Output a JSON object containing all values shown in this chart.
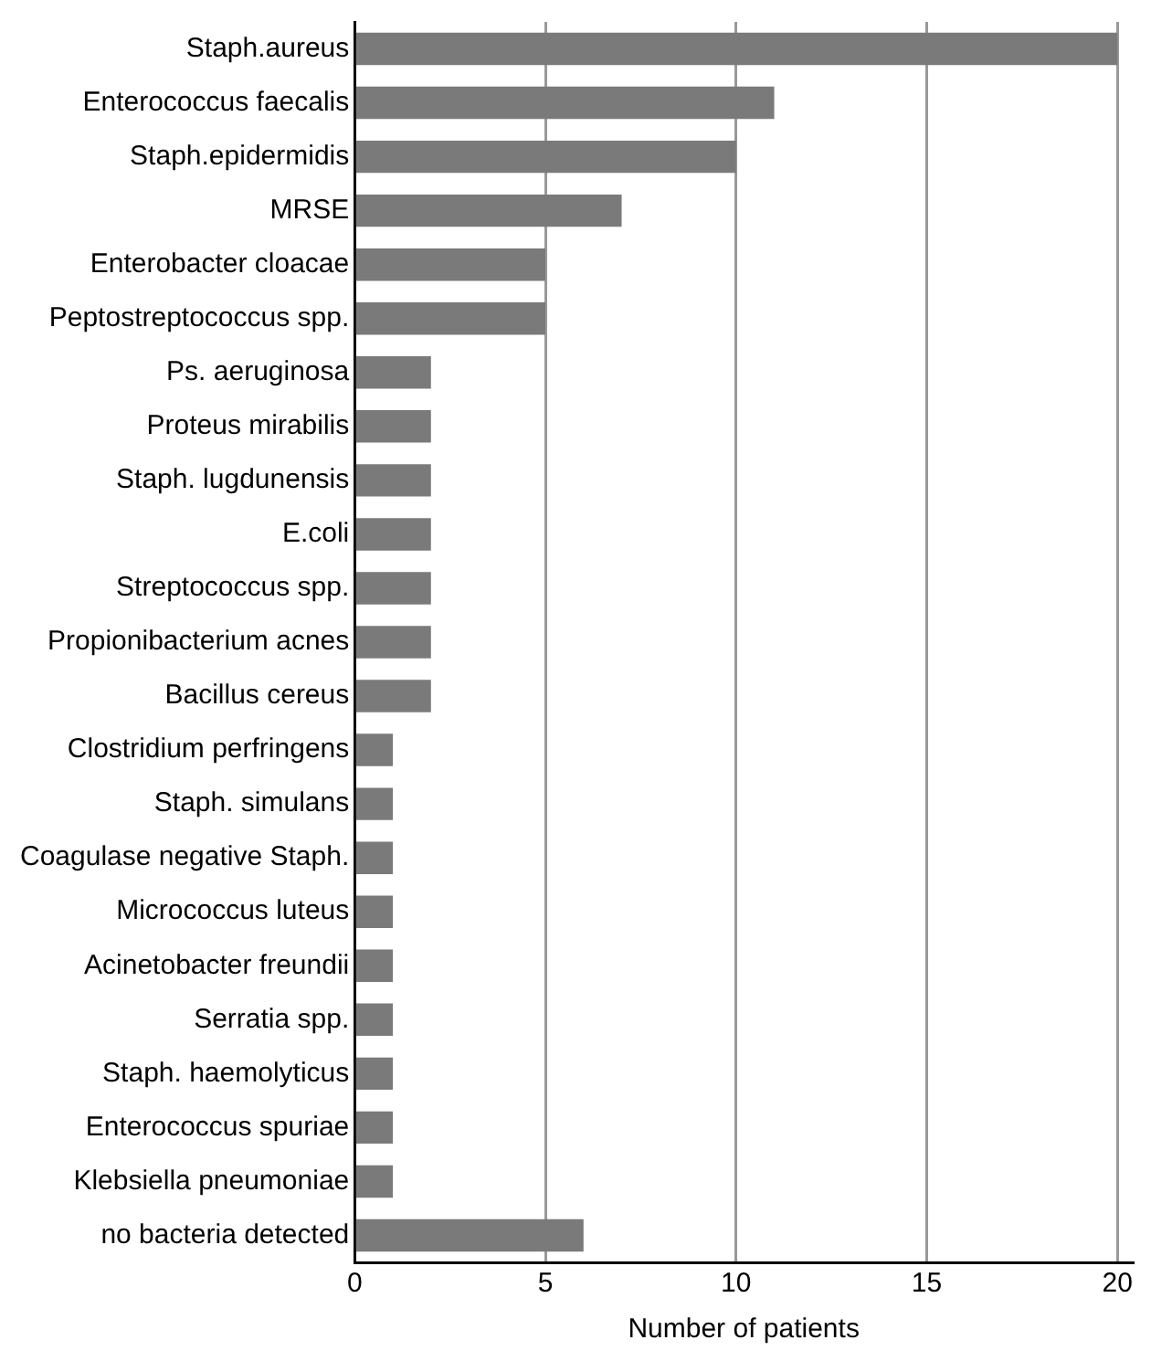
{
  "chart_data": {
    "type": "bar",
    "orientation": "horizontal",
    "xlabel": "Number of patients",
    "categories": [
      "Staph.aureus",
      "Enterococcus faecalis",
      "Staph.epidermidis",
      "MRSE",
      "Enterobacter cloacae",
      "Peptostreptococcus spp.",
      "Ps. aeruginosa",
      "Proteus mirabilis",
      "Staph. lugdunensis",
      "E.coli",
      "Streptococcus spp.",
      "Propionibacterium acnes",
      "Bacillus cereus",
      "Clostridium perfringens",
      "Staph. simulans",
      "Coagulase negative Staph.",
      "Micrococcus luteus",
      "Acinetobacter freundii",
      "Serratia spp.",
      "Staph. haemolyticus",
      "Enterococcus spuriae",
      "Klebsiella pneumoniae",
      "no bacteria detected"
    ],
    "values": [
      20,
      11,
      10,
      7,
      5,
      5,
      2,
      2,
      2,
      2,
      2,
      2,
      2,
      1,
      1,
      1,
      1,
      1,
      1,
      1,
      1,
      1,
      6
    ],
    "color": "#7a7a7a",
    "xlim": [
      0,
      20.4
    ],
    "xticks": [
      0,
      5,
      10,
      15,
      20
    ],
    "grid": "x",
    "legend": false
  }
}
